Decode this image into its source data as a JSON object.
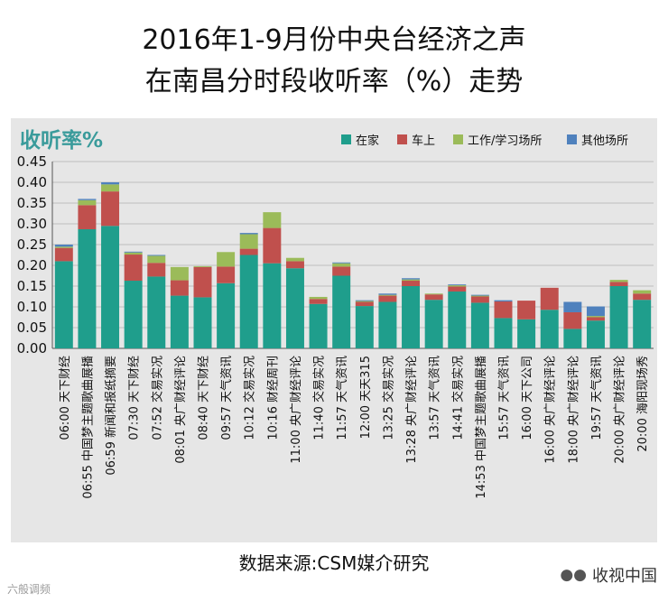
{
  "title_line1": "2016年1-9月份中央台经济之声",
  "title_line2": "在南昌分时段收听率（%）走势",
  "source": "数据来源:CSM媒介研究",
  "watermark_left": "六般调频",
  "watermark_right": "收视中国",
  "colors": {
    "home": "#1f9e8c",
    "car": "#c0504d",
    "work": "#9bbb59",
    "other": "#4f81bd",
    "panel": "#e6e6e6",
    "accent": "#3a9b9b"
  },
  "chart_data": {
    "type": "bar",
    "stacked": true,
    "ylabel": "收听率%",
    "ylim": [
      0,
      0.45
    ],
    "yticks": [
      "0.00",
      "0.05",
      "0.10",
      "0.15",
      "0.20",
      "0.25",
      "0.30",
      "0.35",
      "0.40",
      "0.45"
    ],
    "grid": true,
    "legend_position": "top-right",
    "categories": [
      "06:00 天下财经",
      "06:55 中国梦主题歌曲展播",
      "06:59 新闻和报纸摘要",
      "07:30 天下财经",
      "07:52 交易实况",
      "08:01 央广财经评论",
      "08:40 天下财经",
      "09:57 天气资讯",
      "10:12 交易实况",
      "10:16 财经周刊",
      "11:00 央广财经评论",
      "11:40 交易实况",
      "11:57 天气资讯",
      "12:00 天天315",
      "13:25 交易实况",
      "13:28 央广财经评论",
      "13:57 天气资讯",
      "14:41 交易实况",
      "14:53 中国梦主题歌曲展播",
      "15:57 天气资讯",
      "16:00 天下公司",
      "16:00 央广财经评论",
      "18:00 央广财经评论",
      "19:57 天气资讯",
      "20:00 央广财经评论",
      "20:00 海阳现场秀"
    ],
    "series": [
      {
        "name": "在家",
        "color": "#1f9e8c",
        "values": [
          0.21,
          0.287,
          0.295,
          0.163,
          0.173,
          0.127,
          0.123,
          0.157,
          0.225,
          0.205,
          0.193,
          0.107,
          0.175,
          0.102,
          0.112,
          0.15,
          0.117,
          0.137,
          0.11,
          0.073,
          0.07,
          0.093,
          0.047,
          0.067,
          0.15,
          0.117
        ]
      },
      {
        "name": "车上",
        "color": "#c0504d",
        "values": [
          0.032,
          0.058,
          0.083,
          0.063,
          0.033,
          0.037,
          0.073,
          0.04,
          0.015,
          0.085,
          0.017,
          0.012,
          0.022,
          0.01,
          0.015,
          0.013,
          0.013,
          0.012,
          0.015,
          0.04,
          0.045,
          0.053,
          0.04,
          0.008,
          0.01,
          0.015
        ]
      },
      {
        "name": "工作/学习场所",
        "color": "#9bbb59",
        "values": [
          0.003,
          0.012,
          0.017,
          0.005,
          0.017,
          0.032,
          0.002,
          0.035,
          0.035,
          0.038,
          0.008,
          0.005,
          0.008,
          0.002,
          0.002,
          0.003,
          0.002,
          0.003,
          0.002,
          0.0,
          0.0,
          0.0,
          0.0,
          0.003,
          0.005,
          0.008
        ]
      },
      {
        "name": "其他场所",
        "color": "#4f81bd",
        "values": [
          0.005,
          0.003,
          0.005,
          0.002,
          0.002,
          0.0,
          0.0,
          0.0,
          0.003,
          0.0,
          0.0,
          0.0,
          0.002,
          0.002,
          0.003,
          0.003,
          0.0,
          0.002,
          0.002,
          0.003,
          0.0,
          0.0,
          0.025,
          0.023,
          0.0,
          0.0
        ]
      }
    ]
  }
}
